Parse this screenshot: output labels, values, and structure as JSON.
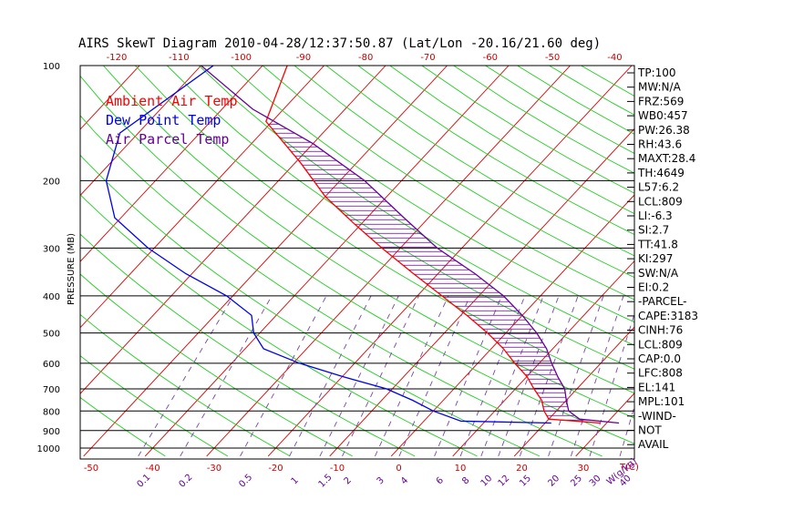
{
  "chart_data": {
    "type": "skewt",
    "title": "AIRS SkewT Diagram 2010-04-28/12:37:50.87 (Lat/Lon -20.16/21.60 deg)",
    "ylabel": "PRESSURE (MB)",
    "xlabel": "T(C)",
    "mixing_ratio_label": "W(g/kg)",
    "y_scale": "log",
    "ylim": [
      1000,
      100
    ],
    "pressure_ticks": [
      "100",
      "200",
      "300",
      "400",
      "500",
      "600",
      "700",
      "800",
      "900",
      "1000"
    ],
    "pressure_values": [
      100,
      200,
      300,
      400,
      500,
      600,
      700,
      800,
      900,
      1000
    ],
    "bottom_temp_ticks": [
      "-50",
      "-40",
      "-30",
      "-20",
      "-10",
      "0",
      "10",
      "20",
      "30"
    ],
    "top_temp_ticks": [
      "-120",
      "-110",
      "-100",
      "-90",
      "-80",
      "-70",
      "-60",
      "-50",
      "-40"
    ],
    "mixing_ratio_ticks": [
      "0.1",
      "0.2",
      "0.5",
      "1",
      "1.5",
      "2",
      "3",
      "4",
      "6",
      "8",
      "10",
      "12",
      "15",
      "20",
      "25",
      "30",
      "40"
    ],
    "legend": [
      {
        "label": "Ambient Air Temp",
        "color": "#ff0000"
      },
      {
        "label": "Dew Point Temp",
        "color": "#0000ee"
      },
      {
        "label": "Air Parcel Temp",
        "color": "#660099"
      }
    ],
    "indices": [
      "TP:100",
      "MW:N/A",
      "FRZ:569",
      "WB0:457",
      "PW:26.38",
      "RH:43.6",
      "MAXT:28.4",
      "TH:4649",
      "L57:6.2",
      "LCL:809",
      "LI:-6.3",
      "SI:2.7",
      "TT:41.8",
      "KI:297",
      "SW:N/A",
      "EI:0.2",
      "-PARCEL-",
      "CAPE:3183",
      "CINH:76",
      "LCL:809",
      "CAP:0.0",
      "LFC:808",
      "EL:141",
      "MPL:101",
      "-WIND-",
      "NOT",
      "AVAIL"
    ],
    "series": [
      {
        "name": "Ambient Air Temp",
        "color": "#ff0000",
        "points": [
          [
            100,
            -76
          ],
          [
            140,
            -71
          ],
          [
            180,
            -59
          ],
          [
            220,
            -50
          ],
          [
            260,
            -41
          ],
          [
            300,
            -33
          ],
          [
            350,
            -24
          ],
          [
            400,
            -16
          ],
          [
            450,
            -9
          ],
          [
            500,
            -3
          ],
          [
            550,
            2
          ],
          [
            600,
            6
          ],
          [
            650,
            10
          ],
          [
            700,
            13
          ],
          [
            750,
            16
          ],
          [
            800,
            18
          ],
          [
            840,
            20
          ],
          [
            860,
            29
          ]
        ]
      },
      {
        "name": "Dew Point Temp",
        "color": "#0000ee",
        "points": [
          [
            100,
            -88
          ],
          [
            150,
            -93
          ],
          [
            200,
            -88
          ],
          [
            250,
            -81
          ],
          [
            300,
            -71
          ],
          [
            350,
            -61
          ],
          [
            400,
            -51
          ],
          [
            450,
            -44
          ],
          [
            500,
            -41
          ],
          [
            550,
            -37
          ],
          [
            600,
            -29
          ],
          [
            650,
            -20
          ],
          [
            700,
            -11
          ],
          [
            750,
            -5
          ],
          [
            800,
            0
          ],
          [
            850,
            6
          ],
          [
            860,
            21
          ]
        ]
      },
      {
        "name": "Air Parcel Temp",
        "color": "#660099",
        "points": [
          [
            100,
            -90
          ],
          [
            130,
            -75
          ],
          [
            160,
            -60
          ],
          [
            200,
            -46
          ],
          [
            250,
            -34
          ],
          [
            300,
            -24
          ],
          [
            350,
            -14
          ],
          [
            400,
            -6
          ],
          [
            450,
            0
          ],
          [
            500,
            5
          ],
          [
            550,
            9
          ],
          [
            600,
            12
          ],
          [
            650,
            15
          ],
          [
            700,
            18
          ],
          [
            750,
            20
          ],
          [
            800,
            22
          ],
          [
            840,
            25
          ],
          [
            860,
            32
          ]
        ]
      }
    ]
  }
}
